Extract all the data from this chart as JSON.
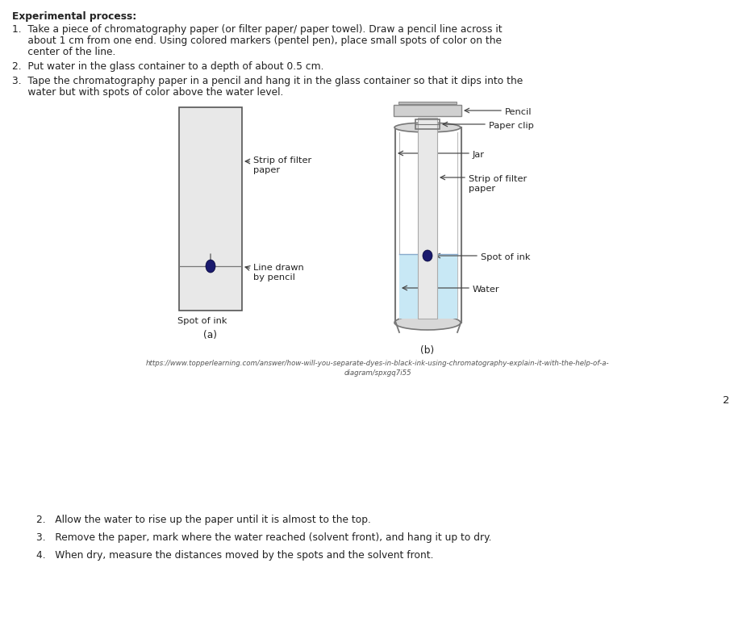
{
  "background_color": "#ffffff",
  "heading": "Experimental process:",
  "step1_line1": "1.  Take a piece of chromatography paper (or filter paper/ paper towel). Draw a pencil line across it",
  "step1_line2": "     about 1 cm from one end. Using colored markers (pentel pen), place small spots of color on the",
  "step1_line3": "     center of the line.",
  "step2": "2.  Put water in the glass container to a depth of about 0.5 cm.",
  "step3_line1": "3.  Tape the chromatography paper in a pencil and hang it in the glass container so that it dips into the",
  "step3_line2": "     water but with spots of color above the water level.",
  "step_a2": "2.   Allow the water to rise up the paper until it is almost to the top.",
  "step_a3": "3.   Remove the paper, mark where the water reached (solvent front), and hang it up to dry.",
  "step_a4": "4.   When dry, measure the distances moved by the spots and the solvent front.",
  "label_a": "(a)",
  "label_b": "(b)",
  "label_strip_filter_a": "Strip of filter\npaper",
  "label_line_pencil": "Line drawn\nby pencil",
  "label_spot_ink_a": "Spot of ink",
  "label_pencil": "Pencil",
  "label_paper_clip": "Paper clip",
  "label_jar": "Jar",
  "label_strip_filter_b": "Strip of filter\npaper",
  "label_spot_ink_b": "Spot of ink",
  "label_water": "Water",
  "url_line1": "https://www.topperlearning.com/answer/how-will-you-separate-dyes-in-black-ink-using-chromatography-explain-it-with-the-help-of-a-",
  "url_line2": "diagram/spxgq7i55",
  "page_num": "2",
  "ink_color": "#1a1a6e",
  "water_color": "#c8e8f5",
  "paper_color": "#e8e8e8",
  "label_color": "#222222",
  "arrow_color": "#444444"
}
